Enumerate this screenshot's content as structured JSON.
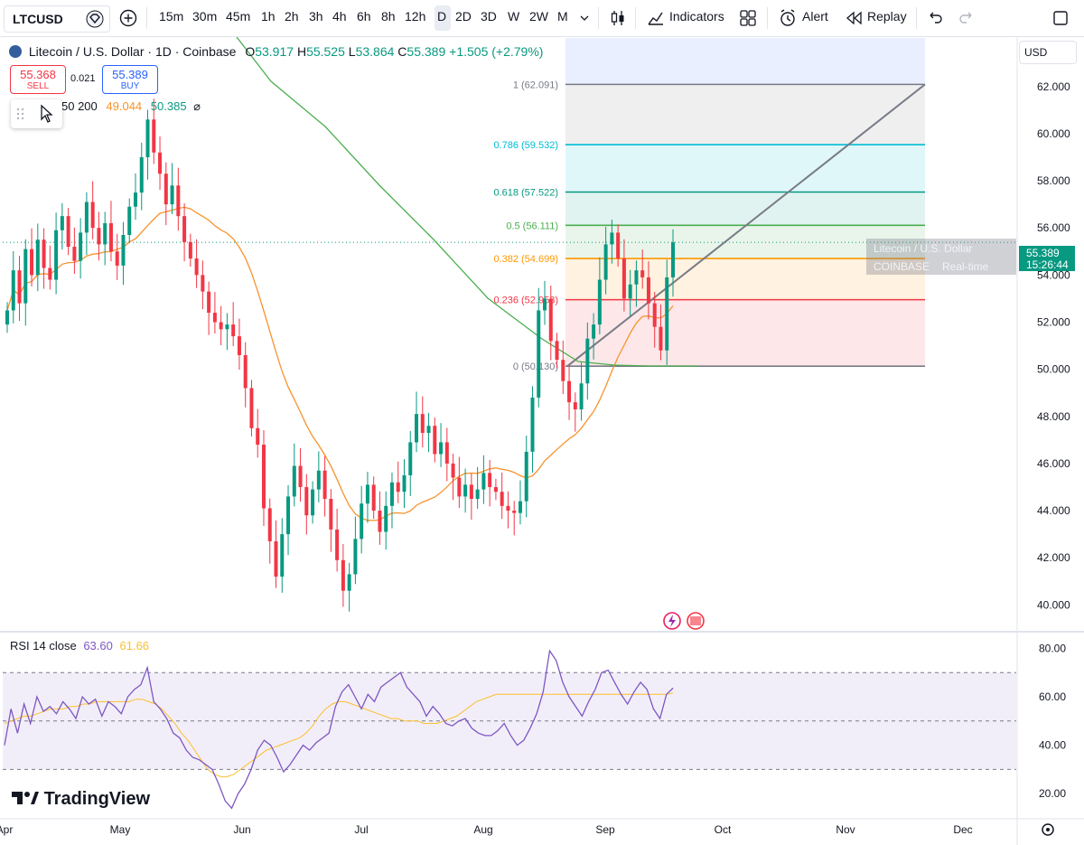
{
  "toolbar": {
    "symbol": "LTCUSD",
    "intervals": [
      "15m",
      "30m",
      "45m",
      "1h",
      "2h",
      "3h",
      "4h",
      "6h",
      "8h",
      "12h",
      "D",
      "2D",
      "3D",
      "W",
      "2W",
      "M"
    ],
    "selected_interval": "D",
    "indicators_label": "Indicators",
    "alert_label": "Alert",
    "replay_label": "Replay"
  },
  "legend": {
    "title": "Litecoin / U.S. Dollar · 1D · Coinbase",
    "o_label": "O",
    "o_value": "53.917",
    "h_label": "H",
    "h_value": "55.525",
    "l_label": "L",
    "l_value": "53.864",
    "c_label": "C",
    "c_value": "55.389",
    "change": "+1.505 (+2.79%)"
  },
  "trade": {
    "sell_price": "55.368",
    "sell_label": "SELL",
    "spread": "0.021",
    "buy_price": "55.389",
    "buy_label": "BUY"
  },
  "ma_legend": {
    "label": "50 200",
    "v1": "49.044",
    "v2": "50.385"
  },
  "currency": "USD",
  "last_price": {
    "value": "55.389",
    "time": "15:26:44"
  },
  "quote_popup": {
    "name": "Litecoin / U.S. Dollar",
    "exchange": "COINBASE",
    "status": "Real-time"
  },
  "rsi_legend": {
    "label": "RSI 14 close",
    "v1": "63.60",
    "v2": "61.66"
  },
  "logo_text": "TradingView",
  "colors": {
    "up": "#089981",
    "down": "#f23645",
    "ma50": "#f7932d",
    "ma200": "#4caf50",
    "rsi": "#7e57c2",
    "rsi_ma": "#fbc02d"
  },
  "chart_data": [
    {
      "type": "candlestick",
      "title": "Litecoin / U.S. Dollar · 1D · Coinbase",
      "x_ticks": [
        "Apr",
        "May",
        "Jun",
        "Jul",
        "Aug",
        "Sep",
        "Oct",
        "Nov",
        "Dec"
      ],
      "y_ticks": [
        "40.000",
        "42.000",
        "44.000",
        "46.000",
        "48.000",
        "50.000",
        "52.000",
        "54.000",
        "56.000",
        "58.000",
        "60.000",
        "62.000"
      ],
      "ylim": [
        38.9,
        64.1
      ],
      "approx_closes": [
        52.5,
        54.2,
        52.8,
        55.1,
        54.0,
        55.5,
        54.3,
        53.8,
        55.9,
        56.5,
        55.2,
        54.6,
        55.8,
        57.1,
        56.0,
        55.3,
        56.2,
        55.0,
        54.4,
        55.7,
        56.9,
        57.5,
        59.0,
        60.6,
        59.2,
        58.3,
        57.0,
        57.8,
        56.5,
        55.4,
        54.7,
        54.0,
        53.3,
        52.4,
        52.0,
        51.7,
        51.9,
        51.4,
        50.6,
        49.2,
        47.5,
        46.8,
        44.1,
        42.7,
        41.2,
        43.0,
        44.6,
        45.9,
        45.0,
        43.8,
        44.9,
        45.7,
        44.5,
        43.2,
        41.9,
        40.6,
        41.3,
        42.8,
        44.3,
        45.1,
        44.0,
        43.1,
        44.2,
        45.2,
        44.8,
        45.5,
        46.9,
        48.1,
        47.3,
        47.6,
        46.4,
        46.9,
        46.0,
        45.4,
        44.6,
        45.1,
        44.5,
        44.9,
        45.6,
        45.0,
        44.8,
        44.2,
        44.0,
        43.9,
        44.4,
        46.5,
        48.8,
        52.5,
        53.0,
        51.2,
        50.4,
        49.5,
        48.6,
        48.3,
        49.4,
        51.3,
        51.9,
        53.8,
        55.3,
        55.8,
        54.7,
        53.0,
        53.6,
        54.2,
        53.9,
        52.8,
        51.8,
        50.8,
        53.9,
        55.39
      ],
      "ma_legend": [
        "50",
        "200"
      ],
      "ma_values": [
        "49.044",
        "50.385"
      ],
      "fibonacci": {
        "levels": [
          {
            "label": "1 (62.091)",
            "value": 62.091,
            "color": "#787b86"
          },
          {
            "label": "0.786 (59.532)",
            "value": 59.532,
            "color": "#00bcd4"
          },
          {
            "label": "0.618 (57.522)",
            "value": 57.522,
            "color": "#089981"
          },
          {
            "label": "0.5 (56.111)",
            "value": 56.111,
            "color": "#4caf50"
          },
          {
            "label": "0.382 (54.699)",
            "value": 54.699,
            "color": "#ff9800"
          },
          {
            "label": "0.236 (52.953)",
            "value": 52.953,
            "color": "#f23645"
          },
          {
            "label": "0 (50.130)",
            "value": 50.13,
            "color": "#787b86"
          }
        ]
      }
    },
    {
      "type": "line",
      "title": "RSI 14 close",
      "y_ticks": [
        "20.00",
        "40.00",
        "60.00",
        "80.00"
      ],
      "ylim": [
        10,
        85
      ],
      "bands": [
        30,
        50,
        70
      ],
      "rsi": [
        40,
        55,
        45,
        57,
        49,
        60,
        54,
        56,
        53,
        58,
        55,
        51,
        60,
        57,
        59,
        52,
        58,
        56,
        53,
        60,
        63,
        65,
        72,
        58,
        55,
        51,
        45,
        43,
        38,
        35,
        34,
        32,
        30,
        24,
        17,
        14,
        20,
        24,
        30,
        38,
        42,
        40,
        35,
        29,
        32,
        36,
        40,
        38,
        41,
        43,
        45,
        56,
        62,
        65,
        60,
        55,
        61,
        58,
        64,
        66,
        68,
        70,
        64,
        61,
        58,
        52,
        56,
        53,
        49,
        48,
        50,
        51,
        47,
        45,
        44,
        44,
        46,
        49,
        44,
        40,
        42,
        47,
        53,
        62,
        79,
        75,
        66,
        60,
        56,
        52,
        58,
        63,
        70,
        71,
        66,
        61,
        57,
        62,
        66,
        63,
        55,
        51,
        61,
        63.6
      ],
      "rsi_ma": [
        49,
        50,
        51,
        52,
        52,
        53,
        54,
        55,
        55,
        55,
        56,
        56,
        57,
        57,
        58,
        58,
        58,
        58,
        58,
        58,
        59,
        59,
        58,
        57,
        55,
        52,
        49,
        45,
        42,
        38,
        34,
        30,
        28,
        27,
        27,
        28,
        30,
        32,
        34,
        36,
        38,
        39,
        40,
        41,
        42,
        43,
        45,
        48,
        52,
        55,
        57,
        58,
        58,
        57,
        56,
        55,
        54,
        53,
        52,
        51,
        51,
        50,
        50,
        50,
        49,
        49,
        49,
        50,
        51,
        52,
        54,
        56,
        58,
        59,
        60,
        61,
        61,
        61,
        61,
        61,
        61,
        61,
        61,
        61,
        61,
        61,
        61,
        61,
        61,
        61,
        61,
        61,
        61,
        61,
        61,
        61,
        61,
        61,
        61,
        61,
        61,
        61,
        61.66
      ]
    }
  ]
}
